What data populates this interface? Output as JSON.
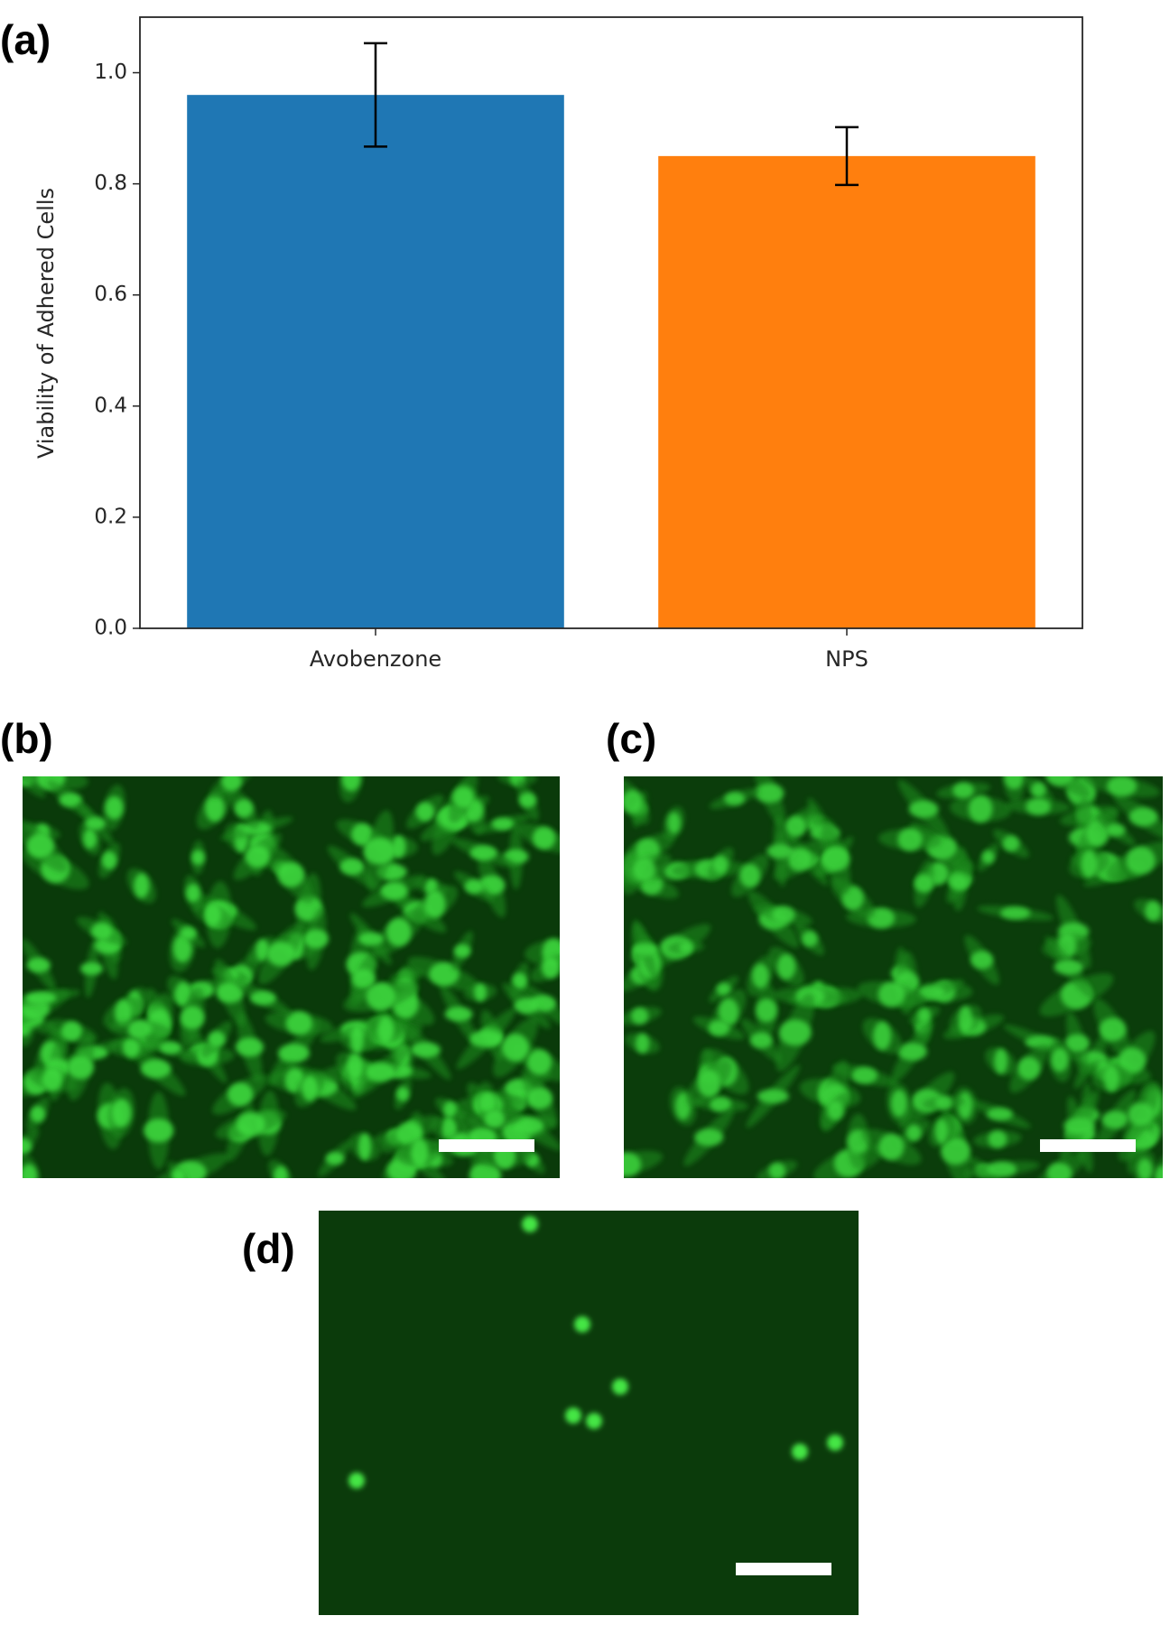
{
  "chart_data": {
    "type": "bar",
    "ylabel": "Viability of Adhered Cells",
    "categories": [
      "Avobenzone",
      "NPS"
    ],
    "values": [
      0.96,
      0.85
    ],
    "errors": [
      0.093,
      0.052
    ],
    "colors": [
      "#1f77b4",
      "#ff7f0e"
    ],
    "ylim": [
      0,
      1.1
    ],
    "yticks": [
      {
        "value": 0,
        "label": "0.0"
      },
      {
        "value": 0.2,
        "label": "0.2"
      },
      {
        "value": 0.4,
        "label": "0.4"
      },
      {
        "value": 0.6,
        "label": "0.6"
      },
      {
        "value": 0.8,
        "label": "0.8"
      },
      {
        "value": 1,
        "label": "1.0"
      }
    ]
  },
  "panel_labels": [
    "(a)",
    "(b)",
    "(c)",
    "(d)"
  ]
}
